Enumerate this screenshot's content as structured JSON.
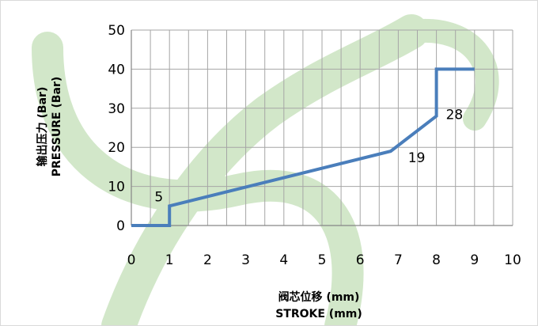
{
  "chart_data": {
    "type": "line",
    "title": "",
    "xlabel": [
      "阀芯位移 (mm)",
      "STROKE (mm)"
    ],
    "ylabel": [
      "输出压力 (Bar)",
      "PRESSURE (Bar)"
    ],
    "xlim": [
      0,
      10
    ],
    "ylim": [
      0,
      50
    ],
    "x_ticks": [
      0,
      1,
      2,
      3,
      4,
      5,
      6,
      7,
      8,
      9,
      10
    ],
    "y_ticks": [
      0,
      10,
      20,
      30,
      40,
      50
    ],
    "x_minor_step": 0.5,
    "grid": true,
    "legend": "none",
    "series": [
      {
        "x": [
          0,
          1,
          1,
          6.8,
          8,
          8,
          9
        ],
        "y": [
          0,
          0,
          5,
          19,
          28,
          40,
          40
        ]
      }
    ],
    "annotations": [
      {
        "text": "5",
        "x": 1,
        "y": 5,
        "anchor": "above-left"
      },
      {
        "text": "19",
        "x": 6.8,
        "y": 19,
        "anchor": "below-right"
      },
      {
        "text": "28",
        "x": 8,
        "y": 28,
        "anchor": "right"
      }
    ],
    "colors": {
      "line": "#4a7ebb",
      "grid": "#a6a6a6",
      "axis": "#868686",
      "watermark": "#9ccc8a"
    }
  }
}
